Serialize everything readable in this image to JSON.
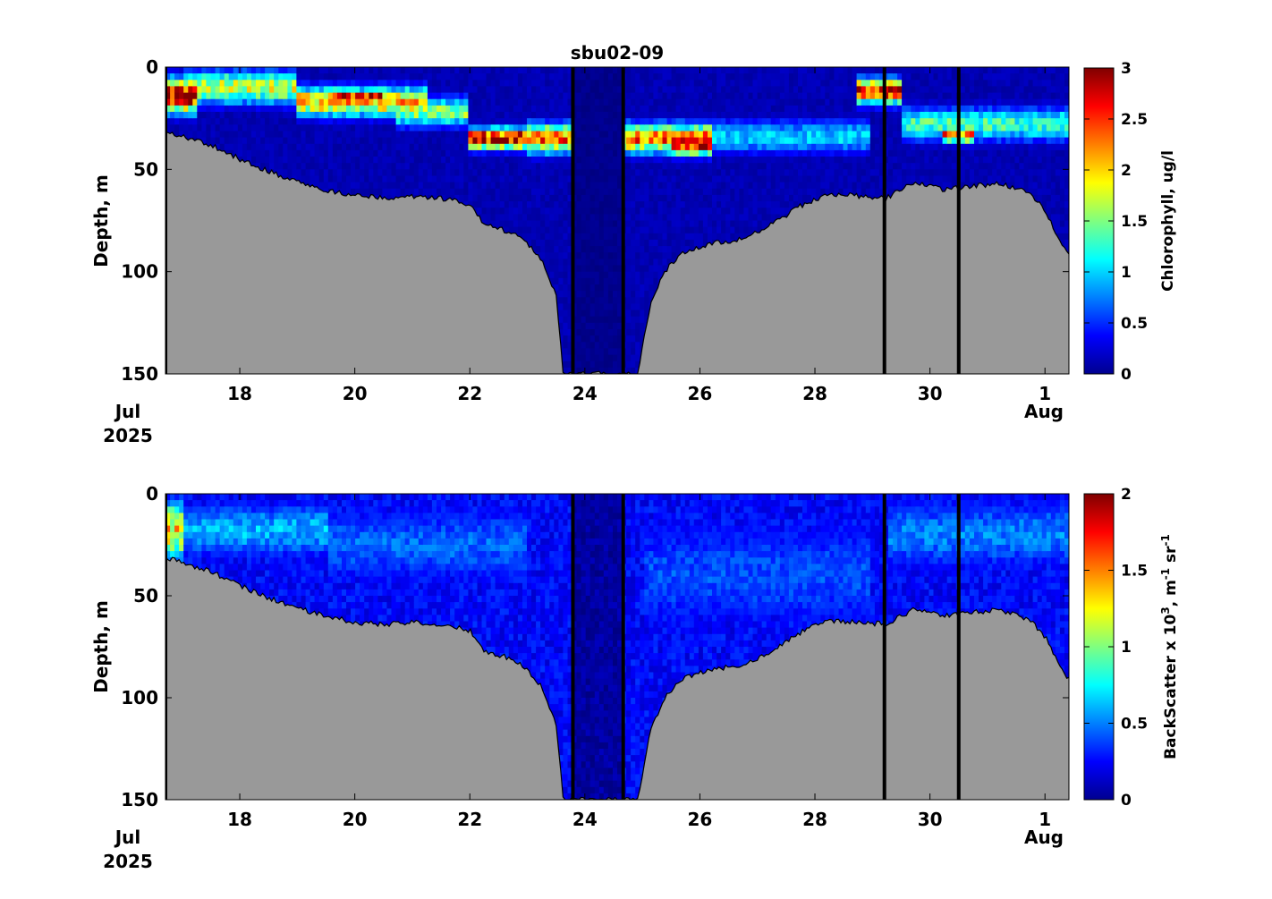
{
  "figure": {
    "title": "sbu02-09"
  },
  "chart_data": [
    {
      "type": "heatmap",
      "title": "sbu02-09",
      "variable": "chlorophyll",
      "xlabel": "",
      "ylabel": "Depth, m",
      "colorbar_label": "Chlorophyll, ug/l",
      "colorbar_ticks": [
        "0",
        "0.5",
        "1",
        "1.5",
        "2",
        "2.5",
        "3"
      ],
      "clim": [
        0,
        3
      ],
      "colormap": "jet",
      "ylim": [
        150,
        0
      ],
      "y_ticks": [
        "0",
        "50",
        "100",
        "150"
      ],
      "xlim": [
        "2025-07-16 17:00",
        "2025-08-01 10:00"
      ],
      "x_ticks": [
        "18",
        "20",
        "22",
        "24",
        "26",
        "28",
        "30",
        "1"
      ],
      "x_corner_labels": {
        "start_month": "Jul",
        "start_year": "2025",
        "end_month": "Aug"
      },
      "seafloor_color": "#999999",
      "no_data_color": "#00008f",
      "data_gaps_black_lines": [
        "2025-07-16 17:00",
        "2025-07-23 19:00",
        "2025-07-24 16:00",
        "2025-07-29 05:00",
        "2025-07-30 12:00"
      ],
      "bottom_depth_profile": [
        {
          "date": "2025-07-16 17:00",
          "depth": 31
        },
        {
          "date": "2025-07-17 00:00",
          "depth": 34
        },
        {
          "date": "2025-07-17 12:00",
          "depth": 38
        },
        {
          "date": "2025-07-18 00:00",
          "depth": 45
        },
        {
          "date": "2025-07-18 12:00",
          "depth": 51
        },
        {
          "date": "2025-07-19 00:00",
          "depth": 56
        },
        {
          "date": "2025-07-19 12:00",
          "depth": 60
        },
        {
          "date": "2025-07-20 00:00",
          "depth": 63
        },
        {
          "date": "2025-07-20 12:00",
          "depth": 64
        },
        {
          "date": "2025-07-21 00:00",
          "depth": 63
        },
        {
          "date": "2025-07-21 12:00",
          "depth": 64
        },
        {
          "date": "2025-07-22 00:00",
          "depth": 67
        },
        {
          "date": "2025-07-22 06:00",
          "depth": 77
        },
        {
          "date": "2025-07-22 18:00",
          "depth": 81
        },
        {
          "date": "2025-07-23 00:00",
          "depth": 86
        },
        {
          "date": "2025-07-23 06:00",
          "depth": 95
        },
        {
          "date": "2025-07-23 12:00",
          "depth": 112
        },
        {
          "date": "2025-07-23 15:00",
          "depth": 150
        },
        {
          "date": "2025-07-24 22:00",
          "depth": 150
        },
        {
          "date": "2025-07-25 03:00",
          "depth": 118
        },
        {
          "date": "2025-07-25 09:00",
          "depth": 100
        },
        {
          "date": "2025-07-25 18:00",
          "depth": 90
        },
        {
          "date": "2025-07-26 06:00",
          "depth": 86
        },
        {
          "date": "2025-07-26 18:00",
          "depth": 84
        },
        {
          "date": "2025-07-27 06:00",
          "depth": 77
        },
        {
          "date": "2025-07-27 18:00",
          "depth": 68
        },
        {
          "date": "2025-07-28 06:00",
          "depth": 62
        },
        {
          "date": "2025-07-28 18:00",
          "depth": 63
        },
        {
          "date": "2025-07-29 06:00",
          "depth": 64
        },
        {
          "date": "2025-07-29 18:00",
          "depth": 56
        },
        {
          "date": "2025-07-30 06:00",
          "depth": 60
        },
        {
          "date": "2025-07-30 18:00",
          "depth": 58
        },
        {
          "date": "2025-07-31 06:00",
          "depth": 57
        },
        {
          "date": "2025-07-31 18:00",
          "depth": 62
        },
        {
          "date": "2025-08-01 00:00",
          "depth": 70
        },
        {
          "date": "2025-08-01 06:00",
          "depth": 84
        },
        {
          "date": "2025-08-01 10:00",
          "depth": 91
        }
      ],
      "features": [
        {
          "date_start": "2025-07-16 17:00",
          "date_end": "2025-07-17 06:00",
          "depth_center": 14,
          "depth_half_width": 8,
          "value": 3.0
        },
        {
          "date_start": "2025-07-17 00:00",
          "date_end": "2025-07-19 00:00",
          "depth_center": 10,
          "depth_half_width": 8,
          "value": 1.7
        },
        {
          "date_start": "2025-07-19 00:00",
          "date_end": "2025-07-21 06:00",
          "depth_center": 17,
          "depth_half_width": 7,
          "value": 2.1
        },
        {
          "date_start": "2025-07-19 12:00",
          "date_end": "2025-07-20 12:00",
          "depth_center": 15,
          "depth_half_width": 4,
          "value": 2.7
        },
        {
          "date_start": "2025-07-20 18:00",
          "date_end": "2025-07-22 00:00",
          "depth_center": 22,
          "depth_half_width": 7,
          "value": 1.5
        },
        {
          "date_start": "2025-07-22 00:00",
          "date_end": "2025-07-23 00:00",
          "depth_center": 35,
          "depth_half_width": 5,
          "value": 2.9
        },
        {
          "date_start": "2025-07-23 00:00",
          "date_end": "2025-07-26 06:00",
          "depth_center": 35,
          "depth_half_width": 7,
          "value": 2.3
        },
        {
          "date_start": "2025-07-25 12:00",
          "date_end": "2025-07-26 06:00",
          "depth_center": 38,
          "depth_half_width": 5,
          "value": 2.8
        },
        {
          "date_start": "2025-07-26 06:00",
          "date_end": "2025-07-29 00:00",
          "depth_center": 34,
          "depth_half_width": 8,
          "value": 1.0
        },
        {
          "date_start": "2025-07-28 18:00",
          "date_end": "2025-07-29 12:00",
          "depth_center": 12,
          "depth_half_width": 6,
          "value": 2.6
        },
        {
          "date_start": "2025-07-29 12:00",
          "date_end": "2025-08-01 10:00",
          "depth_center": 28,
          "depth_half_width": 8,
          "value": 1.3
        },
        {
          "date_start": "2025-07-30 06:00",
          "date_end": "2025-07-30 18:00",
          "depth_center": 33,
          "depth_half_width": 4,
          "value": 2.4
        }
      ],
      "background_value": 0.15
    },
    {
      "type": "heatmap",
      "title": "",
      "variable": "backscatter",
      "xlabel": "",
      "ylabel": "Depth, m",
      "colorbar_label_main": "BackScatter x 10",
      "colorbar_label_exp": "3",
      "colorbar_label_units": ", m",
      "colorbar_label_units_exp": "-1",
      "colorbar_label_sr": " sr",
      "colorbar_label_sr_exp": "-1",
      "colorbar_ticks": [
        "0",
        "0.5",
        "1",
        "1.5",
        "2"
      ],
      "clim": [
        0,
        2
      ],
      "colormap": "jet",
      "ylim": [
        150,
        0
      ],
      "y_ticks": [
        "0",
        "50",
        "100",
        "150"
      ],
      "xlim": [
        "2025-07-16 17:00",
        "2025-08-01 10:00"
      ],
      "x_ticks": [
        "18",
        "20",
        "22",
        "24",
        "26",
        "28",
        "30",
        "1"
      ],
      "x_corner_labels": {
        "start_month": "Jul",
        "start_year": "2025",
        "end_month": "Aug"
      },
      "seafloor_color": "#999999",
      "no_data_color": "#00008f",
      "data_gaps_black_lines": [
        "2025-07-16 17:00",
        "2025-07-23 19:00",
        "2025-07-24 16:00",
        "2025-07-29 05:00",
        "2025-07-30 12:00"
      ],
      "features": [
        {
          "date_start": "2025-07-16 17:00",
          "date_end": "2025-07-17 00:00",
          "depth_center": 18,
          "depth_half_width": 14,
          "value": 1.3
        },
        {
          "date_start": "2025-07-17 00:00",
          "date_end": "2025-07-19 12:00",
          "depth_center": 18,
          "depth_half_width": 14,
          "value": 0.6
        },
        {
          "date_start": "2025-07-19 12:00",
          "date_end": "2025-07-23 00:00",
          "depth_center": 25,
          "depth_half_width": 20,
          "value": 0.45
        },
        {
          "date_start": "2025-07-25 00:00",
          "date_end": "2025-07-29 00:00",
          "depth_center": 40,
          "depth_half_width": 30,
          "value": 0.4
        },
        {
          "date_start": "2025-07-29 06:00",
          "date_end": "2025-08-01 10:00",
          "depth_center": 20,
          "depth_half_width": 18,
          "value": 0.5
        }
      ],
      "background_value": 0.25
    }
  ]
}
